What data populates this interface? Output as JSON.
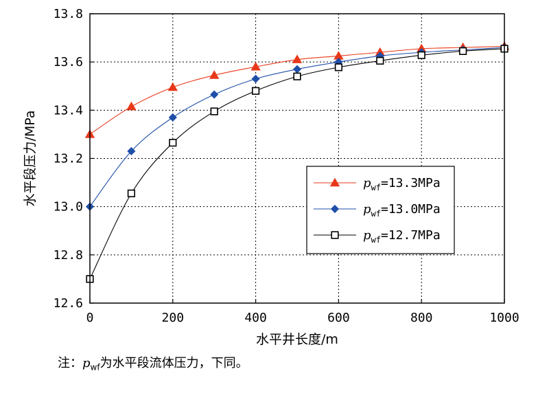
{
  "chart_data": {
    "type": "line",
    "xlabel": "水平井长度/m",
    "ylabel": "水平段压力/MPa",
    "xlim": [
      0,
      1000
    ],
    "ylim": [
      12.6,
      13.8
    ],
    "xticks": [
      "0",
      "200",
      "400",
      "600",
      "800",
      "1000"
    ],
    "yticks": [
      "12.6",
      "12.8",
      "13.0",
      "13.2",
      "13.4",
      "13.6",
      "13.8"
    ],
    "grid": true,
    "legend_position": "center-right",
    "x": [
      0,
      100,
      200,
      300,
      400,
      500,
      600,
      700,
      800,
      900,
      1000
    ],
    "series": [
      {
        "legend_p": "p",
        "legend_sub": "wf",
        "legend_rest": "=13.3MPa",
        "color": "#e8381a",
        "marker": "triangle",
        "values": [
          13.3,
          13.415,
          13.495,
          13.545,
          13.58,
          13.61,
          13.625,
          13.64,
          13.655,
          13.66,
          13.665
        ]
      },
      {
        "legend_p": "p",
        "legend_sub": "wf",
        "legend_rest": "=13.0MPa",
        "color": "#1f4fa8",
        "marker": "diamond",
        "values": [
          13.0,
          13.23,
          13.37,
          13.465,
          13.53,
          13.57,
          13.6,
          13.625,
          13.64,
          13.65,
          13.66
        ]
      },
      {
        "legend_p": "p",
        "legend_sub": "wf",
        "legend_rest": "=12.7MPa",
        "color": "#000000",
        "marker": "square",
        "values": [
          12.7,
          13.055,
          13.265,
          13.395,
          13.48,
          13.54,
          13.578,
          13.605,
          13.628,
          13.645,
          13.655
        ]
      }
    ]
  },
  "note": {
    "prefix": "注：",
    "p": "p",
    "sub": "wf",
    "rest": "为水平段流体压力，下同。"
  }
}
